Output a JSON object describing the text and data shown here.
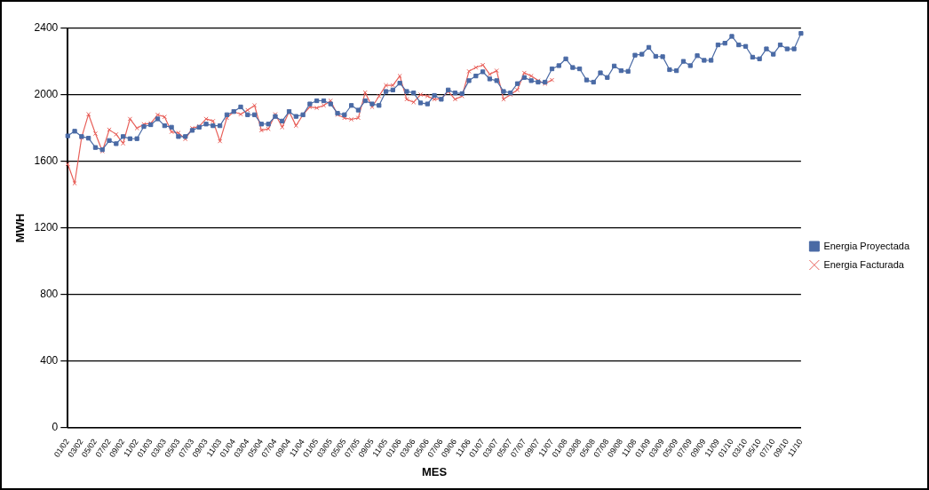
{
  "chart_data": {
    "type": "line",
    "xlabel": "MES",
    "ylabel": "MWH",
    "categories": [
      "01/02",
      null,
      "03/02",
      null,
      "05/02",
      null,
      "07/02",
      null,
      "09/02",
      null,
      "11/02",
      null,
      "01/03",
      null,
      "03/03",
      null,
      "05/03",
      null,
      "07/03",
      null,
      "09/03",
      null,
      "11/03",
      null,
      "01/04",
      null,
      "03/04",
      null,
      "05/04",
      null,
      "07/04",
      null,
      "09/04",
      null,
      "11/04",
      null,
      "01/05",
      null,
      "03/05",
      null,
      "05/05",
      null,
      "07/05",
      null,
      "09/05",
      null,
      "11/05",
      null,
      "01/06",
      null,
      "03/06",
      null,
      "05/06",
      null,
      "07/06",
      null,
      "09/06",
      null,
      "11/06",
      null,
      "01/07",
      null,
      "03/07",
      null,
      "05/07",
      null,
      "07/07",
      null,
      "09/07",
      null,
      "11/07",
      null,
      "01/08",
      null,
      "03/08",
      null,
      "05/08",
      null,
      "07/08",
      null,
      "09/08",
      null,
      "11/08",
      null,
      "01/09",
      null,
      "03/09",
      null,
      "05/09",
      null,
      "07/09",
      null,
      "09/09",
      null,
      "11/09",
      null,
      "01/10",
      null,
      "03/10",
      null,
      "05/10",
      null,
      "07/10",
      null,
      "09/10",
      null,
      "11/10"
    ],
    "series": [
      {
        "name": "Energia Proyectada",
        "color": "#4a6aa5",
        "marker": "square",
        "values": [
          1754,
          1782,
          1750,
          1740,
          1684,
          1671,
          1726,
          1707,
          1750,
          1737,
          1737,
          1810,
          1821,
          1856,
          1815,
          1806,
          1750,
          1750,
          1787,
          1806,
          1825,
          1815,
          1815,
          1881,
          1900,
          1928,
          1881,
          1881,
          1825,
          1825,
          1871,
          1843,
          1900,
          1871,
          1881,
          1946,
          1965,
          1965,
          1946,
          1890,
          1881,
          1937,
          1909,
          1965,
          1946,
          1937,
          2021,
          2030,
          2071,
          2021,
          2012,
          1952,
          1946,
          1997,
          1974,
          2030,
          2012,
          2008,
          2086,
          2114,
          2139,
          2096,
          2086,
          2021,
          2012,
          2068,
          2105,
          2086,
          2077,
          2077,
          2157,
          2176,
          2217,
          2165,
          2157,
          2090,
          2077,
          2133,
          2105,
          2174,
          2146,
          2142,
          2239,
          2245,
          2286,
          2232,
          2230,
          2152,
          2146,
          2202,
          2176,
          2236,
          2208,
          2208,
          2301,
          2311,
          2352,
          2301,
          2292,
          2227,
          2217,
          2277,
          2245,
          2301,
          2277,
          2277,
          2370
        ]
      },
      {
        "name": "Energia Facturada",
        "color": "#e8605a",
        "marker": "cross",
        "values": [
          1585,
          1469,
          1744,
          1884,
          1768,
          1662,
          1791,
          1763,
          1709,
          1856,
          1800,
          1824,
          1830,
          1881,
          1868,
          1778,
          1772,
          1735,
          1800,
          1811,
          1856,
          1843,
          1722,
          1862,
          1900,
          1884,
          1909,
          1937,
          1787,
          1796,
          1884,
          1806,
          1900,
          1815,
          1881,
          1928,
          1922,
          1937,
          1965,
          1881,
          1862,
          1853,
          1862,
          2015,
          1928,
          1993,
          2058,
          2058,
          2114,
          1974,
          1956,
          2002,
          1993,
          1974,
          1978,
          2021,
          1974,
          1993,
          2142,
          2165,
          2180,
          2124,
          2146,
          1974,
          2002,
          2030,
          2133,
          2114,
          2086,
          2068,
          2090,
          null,
          null,
          null,
          null,
          null,
          null,
          null,
          null,
          null,
          null,
          null,
          null,
          null,
          null,
          null,
          null,
          null,
          null,
          null,
          null,
          null,
          null,
          null,
          null,
          null,
          null,
          null,
          null,
          null,
          null,
          null,
          null,
          null,
          null,
          null,
          null
        ]
      }
    ],
    "ylim": [
      0,
      2400
    ],
    "yticks": [
      0,
      400,
      800,
      1200,
      1600,
      2000,
      2400
    ],
    "grid": "y",
    "legend": "right",
    "line_style": "solid"
  }
}
